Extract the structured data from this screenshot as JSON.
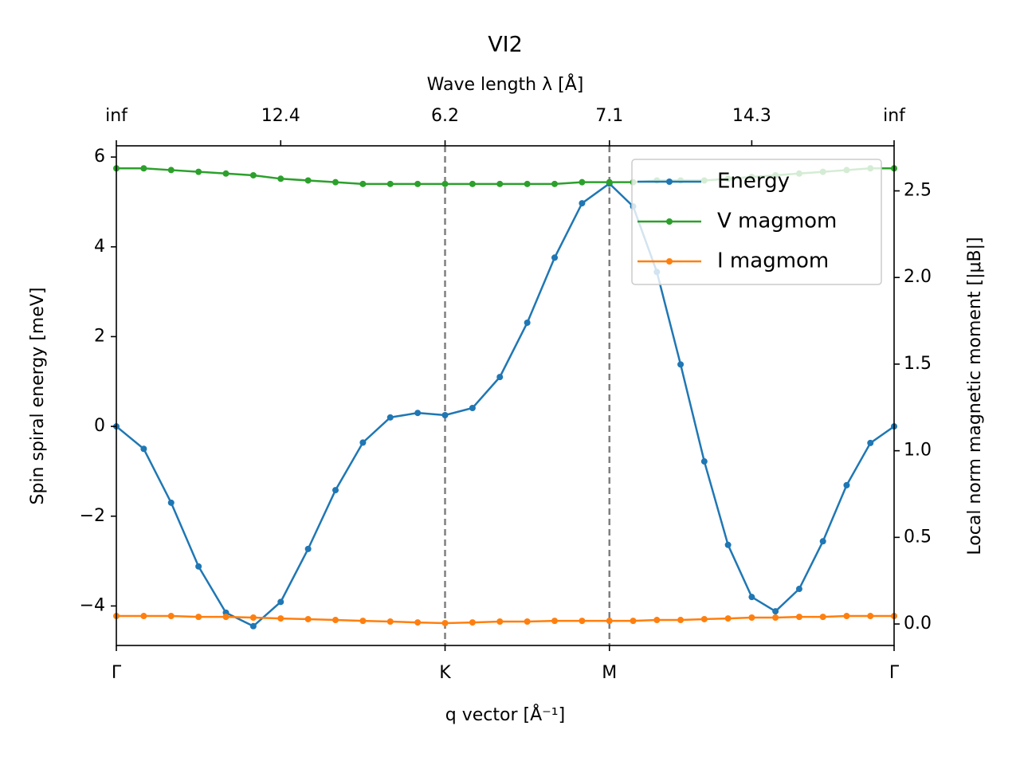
{
  "chart_data": {
    "type": "line",
    "title": "VI2",
    "xlabel": "q vector [Å⁻¹]",
    "x2label": "Wave length λ [Å]",
    "ylabel": "Spin spiral energy [meV]",
    "y2label": "Local norm magnetic moment [|μB|]",
    "x": [
      0,
      0.0845,
      0.1689,
      0.2534,
      0.3378,
      0.4223,
      0.5067,
      0.5912,
      0.6756,
      0.7601,
      0.8445,
      0.929,
      1.0134,
      1.0979,
      1.1823,
      1.2668,
      1.3512,
      1.4357,
      1.5201,
      1.5932,
      1.6664,
      1.7395,
      1.8126,
      1.8858,
      1.9589,
      2.032,
      2.1052,
      2.1783,
      2.2514,
      2.3246,
      2.3977
    ],
    "series": [
      {
        "name": "Energy",
        "color": "#1f77b4",
        "axis": "y",
        "values": [
          0,
          -0.5,
          -1.7,
          -3.12,
          -4.15,
          -4.45,
          -3.91,
          -2.73,
          -1.42,
          -0.36,
          0.2,
          0.3,
          0.25,
          0.41,
          1.1,
          2.31,
          3.76,
          4.97,
          5.41,
          4.9,
          3.44,
          1.38,
          -0.78,
          -2.64,
          -3.8,
          -4.12,
          -3.62,
          -2.56,
          -1.31,
          -0.37,
          0
        ]
      },
      {
        "name": "V magmom",
        "color": "#2ca02c",
        "axis": "y2",
        "values": [
          2.63,
          2.63,
          2.62,
          2.61,
          2.6,
          2.59,
          2.57,
          2.56,
          2.55,
          2.54,
          2.54,
          2.54,
          2.54,
          2.54,
          2.54,
          2.54,
          2.54,
          2.55,
          2.55,
          2.55,
          2.56,
          2.56,
          2.56,
          2.57,
          2.58,
          2.59,
          2.6,
          2.61,
          2.62,
          2.63,
          2.63
        ]
      },
      {
        "name": "I magmom",
        "color": "#ff7f0e",
        "axis": "y2",
        "values": [
          0.046,
          0.046,
          0.046,
          0.041,
          0.041,
          0.037,
          0.032,
          0.028,
          0.023,
          0.018,
          0.014,
          0.009,
          0.005,
          0.009,
          0.014,
          0.014,
          0.018,
          0.018,
          0.018,
          0.018,
          0.023,
          0.023,
          0.028,
          0.032,
          0.037,
          0.037,
          0.041,
          0.041,
          0.046,
          0.046,
          0.046
        ]
      }
    ],
    "xlim": [
      0,
      2.3977
    ],
    "xticks": [
      {
        "value": 0,
        "label": "Γ"
      },
      {
        "value": 1.0134,
        "label": "K"
      },
      {
        "value": 1.5201,
        "label": "M"
      },
      {
        "value": 2.3977,
        "label": "Γ"
      }
    ],
    "x2ticks": [
      {
        "value": 0,
        "label": "inf"
      },
      {
        "value": 0.5067,
        "label": "12.4"
      },
      {
        "value": 1.0134,
        "label": "6.2"
      },
      {
        "value": 1.5201,
        "label": "7.1"
      },
      {
        "value": 1.9589,
        "label": "14.3"
      },
      {
        "value": 2.3977,
        "label": "inf"
      }
    ],
    "vlines": [
      1.0134,
      1.5201
    ],
    "ylim": [
      -4.88,
      6.25
    ],
    "yticks": [
      {
        "value": -4,
        "label": "−4"
      },
      {
        "value": -2,
        "label": "−2"
      },
      0,
      2,
      4,
      6
    ],
    "y2lim": [
      -0.124,
      2.76
    ],
    "y2ticks": [
      {
        "value": 0,
        "label": "0.0"
      },
      {
        "value": 0.5,
        "label": "0.5"
      },
      {
        "value": 1,
        "label": "1.0"
      },
      {
        "value": 1.5,
        "label": "1.5"
      },
      {
        "value": 2,
        "label": "2.0"
      },
      {
        "value": 2.5,
        "label": "2.5"
      }
    ],
    "legend": "upper right",
    "grid": false
  }
}
